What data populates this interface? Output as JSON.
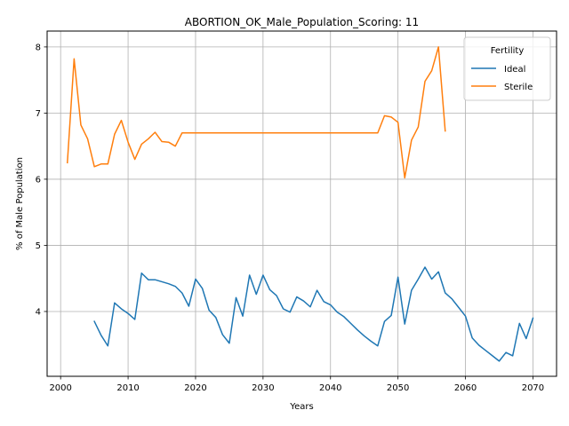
{
  "chart_data": {
    "type": "line",
    "title": "ABORTION_OK_Male_Population_Scoring: 11",
    "xlabel": "Years",
    "ylabel": "% of Male Population",
    "xlim": [
      1998,
      2073.5
    ],
    "ylim": [
      3.02,
      8.24
    ],
    "xticks": [
      2000,
      2010,
      2020,
      2030,
      2040,
      2050,
      2060,
      2070
    ],
    "yticks": [
      4,
      5,
      6,
      7,
      8
    ],
    "grid": true,
    "legend": {
      "title": "Fertility",
      "placement": "top-right"
    },
    "series": [
      {
        "name": "Ideal",
        "color": "#1f77b4",
        "x": [
          2005,
          2006,
          2007,
          2008,
          2009,
          2010,
          2011,
          2012,
          2013,
          2014,
          2015,
          2016,
          2017,
          2018,
          2019,
          2020,
          2021,
          2022,
          2023,
          2024,
          2025,
          2026,
          2027,
          2028,
          2029,
          2030,
          2031,
          2032,
          2033,
          2034,
          2035,
          2036,
          2037,
          2038,
          2039,
          2040,
          2041,
          2042,
          2043,
          2044,
          2045,
          2046,
          2047,
          2048,
          2049,
          2050,
          2051,
          2052,
          2053,
          2054,
          2055,
          2056,
          2057,
          2058,
          2059,
          2060,
          2061,
          2062,
          2063,
          2064,
          2065,
          2066,
          2067,
          2068,
          2069,
          2070
        ],
        "values": [
          3.85,
          3.64,
          3.48,
          4.13,
          4.04,
          3.97,
          3.88,
          4.58,
          4.48,
          4.48,
          4.45,
          4.42,
          4.38,
          4.28,
          4.08,
          4.49,
          4.35,
          4.02,
          3.91,
          3.65,
          3.52,
          4.21,
          3.93,
          4.55,
          4.26,
          4.55,
          4.33,
          4.24,
          4.04,
          3.99,
          4.22,
          4.16,
          4.07,
          4.32,
          4.15,
          4.1,
          3.99,
          3.92,
          3.82,
          3.72,
          3.63,
          3.55,
          3.48,
          3.85,
          3.94,
          4.52,
          3.81,
          4.32,
          4.49,
          4.67,
          4.49,
          4.6,
          4.28,
          4.19,
          4.06,
          3.93,
          3.6,
          3.49,
          3.41,
          3.33,
          3.25,
          3.38,
          3.33,
          3.82,
          3.59,
          3.9
        ]
      },
      {
        "name": "Sterile",
        "color": "#ff7f0e",
        "x": [
          2001,
          2002,
          2003,
          2004,
          2005,
          2006,
          2007,
          2008,
          2009,
          2010,
          2011,
          2012,
          2013,
          2014,
          2015,
          2016,
          2017,
          2018,
          2019,
          2020,
          2021,
          2022,
          2023,
          2024,
          2025,
          2026,
          2027,
          2028,
          2029,
          2030,
          2031,
          2032,
          2033,
          2034,
          2035,
          2036,
          2037,
          2038,
          2039,
          2040,
          2041,
          2042,
          2043,
          2044,
          2045,
          2046,
          2047,
          2048,
          2049,
          2050,
          2051,
          2052,
          2053,
          2054,
          2055,
          2056,
          2057
        ],
        "values": [
          6.25,
          7.82,
          6.82,
          6.61,
          6.19,
          6.23,
          6.23,
          6.68,
          6.89,
          6.56,
          6.3,
          6.53,
          6.61,
          6.71,
          6.57,
          6.56,
          6.5,
          6.7,
          6.7,
          6.7,
          6.7,
          6.7,
          6.7,
          6.7,
          6.7,
          6.7,
          6.7,
          6.7,
          6.7,
          6.7,
          6.7,
          6.7,
          6.7,
          6.7,
          6.7,
          6.7,
          6.7,
          6.7,
          6.7,
          6.7,
          6.7,
          6.7,
          6.7,
          6.7,
          6.7,
          6.7,
          6.7,
          6.96,
          6.94,
          6.86,
          6.02,
          6.59,
          6.79,
          7.48,
          7.64,
          8.0,
          6.73
        ]
      }
    ]
  }
}
